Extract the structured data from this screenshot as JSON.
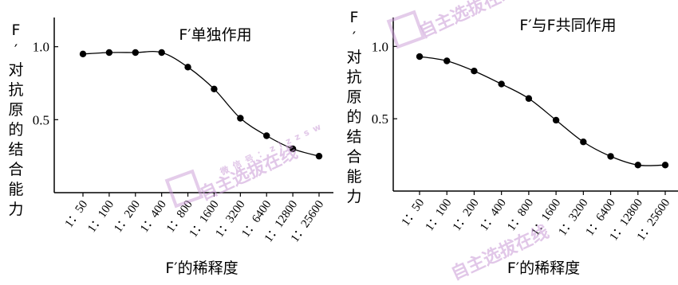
{
  "chart_data": [
    {
      "type": "line",
      "title": "F′单独作用",
      "xlabel": "F′的稀释度",
      "ylabel": "F′对抗原的结合能力",
      "categories": [
        "1：50",
        "1：100",
        "1：200",
        "1：400",
        "1：800",
        "1：1600",
        "1：3200",
        "1：6400",
        "1：12800",
        "1：25600"
      ],
      "values": [
        0.95,
        0.96,
        0.96,
        0.96,
        0.86,
        0.71,
        0.51,
        0.39,
        0.3,
        0.25
      ],
      "yticks": [
        0.5,
        1.0
      ],
      "ytick_labels": [
        "0.5",
        "1.0"
      ],
      "ylim": [
        0.0,
        1.2
      ],
      "grid": false
    },
    {
      "type": "line",
      "title": "F′与F共同作用",
      "xlabel": "F′的稀释度",
      "ylabel": "F′对抗原的结合能力",
      "categories": [
        "1：50",
        "1：100",
        "1：200",
        "1：400",
        "1：800",
        "1：1600",
        "1：3200",
        "1：6400",
        "1：12800",
        "1：25600"
      ],
      "values": [
        0.93,
        0.9,
        0.83,
        0.74,
        0.64,
        0.49,
        0.34,
        0.24,
        0.18,
        0.18
      ],
      "yticks": [
        0.5,
        1.0
      ],
      "ytick_labels": [
        "0.5",
        "1.0"
      ],
      "ylim": [
        0.0,
        1.2
      ],
      "grid": false
    }
  ],
  "watermark": {
    "text": "自主选拔在线",
    "subtext": "微信号：zizzsw",
    "color": "#c99ad6"
  }
}
